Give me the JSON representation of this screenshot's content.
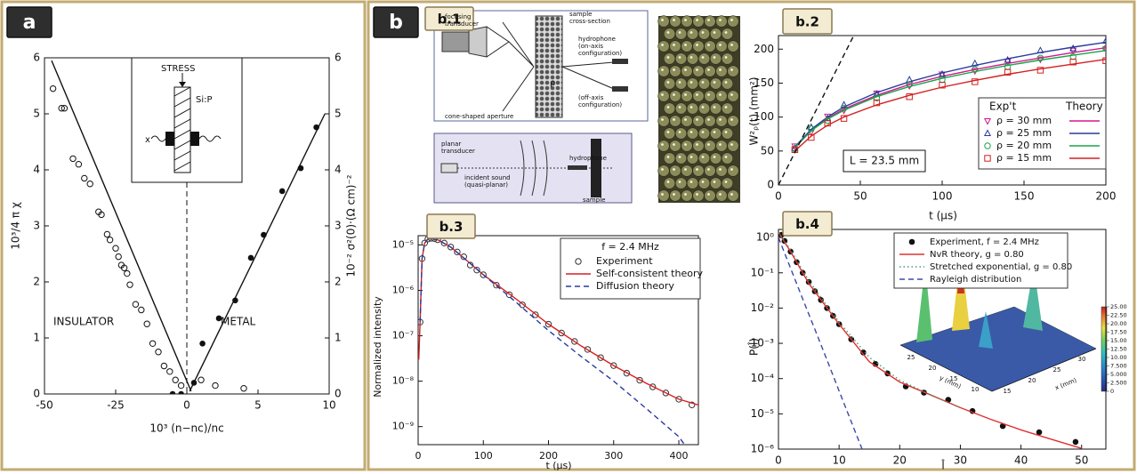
{
  "panel_labels": [
    "a",
    "b"
  ],
  "diagram": {
    "label": "b.1",
    "top": [
      "focusing",
      "transducer",
      "sample",
      "cross-section",
      "hydrophone",
      "(on-axis",
      "configuration)",
      "ρ",
      "(off-axis",
      "configuration)",
      "cone-shaped aperture"
    ],
    "bottom": [
      "planar",
      "transducer",
      "incident sound",
      "(quasi-planar)",
      "hydrophone",
      "sample"
    ]
  },
  "chart_data": [
    {
      "type": "scatter",
      "label": "a",
      "xlabel": "10³ (n−nc)/nc",
      "ylabel": "10³/4 π χ",
      "y2label": "10⁻² σ²(0)·(Ω cm)⁻²",
      "xlim": [
        -50,
        10
      ],
      "xscale_segments": [
        [
          -50,
          0
        ],
        [
          0,
          10
        ]
      ],
      "xticks": [
        -50,
        -25,
        0,
        5,
        10
      ],
      "ylim": [
        0,
        6
      ],
      "yticks": [
        0,
        1,
        2,
        3,
        4,
        5,
        6
      ],
      "y2lim": [
        0,
        6
      ],
      "y2ticks": [
        0,
        1,
        2,
        3,
        4,
        5,
        6
      ],
      "annotations": [
        "INSULATOR",
        "METAL",
        "STRESS",
        "Si:P",
        "x"
      ],
      "series": [
        {
          "marker": "open-circle",
          "color": "#111",
          "x": [
            -47,
            -44,
            -43,
            -40,
            -38,
            -36,
            -34,
            -31,
            -30,
            -28,
            -27,
            -25,
            -24,
            -23,
            -22,
            -21,
            -20,
            -18,
            -16,
            -14,
            -12,
            -10,
            -8,
            -6,
            -4,
            -2,
            1,
            2,
            4
          ],
          "values": [
            5.45,
            5.1,
            5.1,
            4.2,
            4.1,
            3.85,
            3.75,
            3.25,
            3.2,
            2.85,
            2.75,
            2.6,
            2.45,
            2.3,
            2.25,
            2.15,
            1.95,
            1.6,
            1.5,
            1.25,
            0.9,
            0.75,
            0.5,
            0.4,
            0.25,
            0.15,
            0.25,
            0.15,
            0.1
          ]
        },
        {
          "marker": "filled-circle",
          "color": "#111",
          "axis": "y2",
          "x": [
            -5,
            -2,
            0.5,
            1.1,
            2.25,
            3.4,
            4.5,
            5.4,
            6.7,
            8,
            9.1
          ],
          "values": [
            0,
            0,
            0.2,
            0.9,
            1.35,
            1.67,
            2.43,
            2.84,
            3.62,
            4.03,
            4.76
          ]
        },
        {
          "line": "solid",
          "color": "#111",
          "x": [
            -47.5,
            0.3
          ],
          "values": [
            5.95,
            0.05
          ]
        },
        {
          "line": "solid",
          "color": "#111",
          "axis": "y2",
          "x": [
            0.2,
            9.7
          ],
          "values": [
            0.05,
            5.0
          ]
        }
      ]
    },
    {
      "type": "line",
      "label": "b.2",
      "xlabel": "t (µs)",
      "ylabel": "W²ᵨ(t) (mm²)",
      "xlim": [
        0,
        200
      ],
      "xticks": [
        0,
        50,
        100,
        150,
        200
      ],
      "ylim": [
        0,
        220
      ],
      "yticks": [
        0,
        50,
        100,
        150,
        200
      ],
      "legend_header": [
        "Exp't",
        "Theory"
      ],
      "annotations": [
        "L = 23.5 mm"
      ],
      "x": [
        10,
        20,
        30,
        40,
        60,
        80,
        100,
        120,
        140,
        160,
        180,
        200
      ],
      "series": [
        {
          "name": "ρ = 30 mm",
          "color": "#d6188a",
          "line": "solid",
          "marker": "triangle-down",
          "values": [
            55,
            80,
            98,
            112,
            132,
            148,
            160,
            170,
            179,
            187,
            195,
            202
          ],
          "points": [
            57,
            78,
            101,
            110,
            135,
            146,
            163,
            168,
            182,
            185,
            198,
            200
          ]
        },
        {
          "name": "ρ = 25 mm",
          "color": "#2b3a9e",
          "line": "solid",
          "marker": "triangle-up",
          "values": [
            56,
            82,
            100,
            115,
            136,
            152,
            165,
            176,
            186,
            195,
            203,
            210
          ],
          "points": [
            54,
            85,
            98,
            118,
            134,
            155,
            163,
            179,
            184,
            198,
            201,
            212
          ]
        },
        {
          "name": "ρ = 20 mm",
          "color": "#1aa34a",
          "line": "solid",
          "marker": "circle",
          "values": [
            55,
            80,
            97,
            110,
            130,
            145,
            157,
            167,
            176,
            184,
            191,
            198
          ],
          "points": [
            53,
            83,
            95,
            113,
            128,
            148,
            155,
            170,
            174,
            187,
            189,
            201
          ]
        },
        {
          "name": "ρ = 15 mm",
          "color": "#d42020",
          "line": "solid",
          "marker": "square",
          "values": [
            50,
            72,
            88,
            100,
            118,
            132,
            144,
            154,
            163,
            171,
            178,
            185
          ],
          "points": [
            52,
            70,
            91,
            98,
            121,
            130,
            147,
            152,
            166,
            169,
            181,
            183
          ]
        },
        {
          "color": "#111",
          "line": "dashed",
          "x": [
            0,
            46
          ],
          "values": [
            0,
            220
          ]
        }
      ]
    },
    {
      "type": "line",
      "label": "b.3",
      "xlabel": "t (µs)",
      "ylabel": "Normalized intensity",
      "xlim": [
        0,
        430
      ],
      "xticks": [
        0,
        100,
        200,
        300,
        400
      ],
      "log_y": true,
      "ylim": [
        4e-10,
        1.6e-05
      ],
      "yticks": [
        {
          "value": 1e-09,
          "label": "10⁻⁹"
        },
        {
          "value": 1e-08,
          "label": "10⁻⁸"
        },
        {
          "value": 1e-07,
          "label": "10⁻⁷"
        },
        {
          "value": 1e-06,
          "label": "10⁻⁶"
        },
        {
          "value": 1e-05,
          "label": "10⁻⁵"
        }
      ],
      "legend_title": "f = 2.4 MHz",
      "series": [
        {
          "name": "Experiment",
          "color": "#333",
          "marker": "open-circle",
          "x": [
            3,
            6,
            10,
            15,
            20,
            25,
            30,
            40,
            50,
            60,
            70,
            80,
            90,
            100,
            120,
            140,
            160,
            180,
            200,
            220,
            240,
            260,
            280,
            300,
            320,
            340,
            360,
            380,
            400,
            420
          ],
          "values": [
            2e-07,
            5e-06,
            1.1e-05,
            1.35e-05,
            1.4e-05,
            1.38e-05,
            1.3e-05,
            1.1e-05,
            9e-06,
            7e-06,
            5.5e-06,
            3.6e-06,
            2.8e-06,
            2.2e-06,
            1.3e-06,
            8e-07,
            4.8e-07,
            2.9e-07,
            1.8e-07,
            1.15e-07,
            7.5e-08,
            5e-08,
            3.3e-08,
            2.2e-08,
            1.5e-08,
            1.05e-08,
            7.5e-09,
            5.5e-09,
            4e-09,
            3e-09
          ]
        },
        {
          "name": "Self-consistent theory",
          "color": "#d62020",
          "line": "solid",
          "x": [
            1,
            3,
            6,
            10,
            15,
            20,
            30,
            50,
            75,
            100,
            150,
            200,
            250,
            300,
            350,
            400,
            430
          ],
          "values": [
            3e-08,
            2e-07,
            5e-06,
            1.1e-05,
            1.35e-05,
            1.4e-05,
            1.3e-05,
            9e-06,
            4.5e-06,
            2.2e-06,
            6.5e-07,
            1.8e-07,
            6e-08,
            2.2e-08,
            9e-09,
            4e-09,
            3e-09
          ]
        },
        {
          "name": "Diffusion theory",
          "color": "#2a3aa0",
          "line": "dashed",
          "x": [
            3,
            6,
            10,
            15,
            20,
            30,
            50,
            75,
            100,
            150,
            200,
            250,
            300,
            350,
            400,
            415
          ],
          "values": [
            2e-07,
            5e-06,
            1.1e-05,
            1.35e-05,
            1.4e-05,
            1.3e-05,
            9e-06,
            4.5e-06,
            2.2e-06,
            5.5e-07,
            1.3e-07,
            3.5e-08,
            1e-08,
            2.5e-09,
            6e-10,
            3e-10
          ]
        }
      ]
    },
    {
      "type": "line",
      "label": "b.4",
      "xlabel": "l̂",
      "ylabel": "P(l̂)",
      "xlim": [
        0,
        54
      ],
      "xticks": [
        0,
        10,
        20,
        30,
        40,
        50
      ],
      "log_y": true,
      "ylim": [
        1e-06,
        1.7
      ],
      "yticks": [
        {
          "value": 1e-06,
          "label": "10⁻⁶"
        },
        {
          "value": 1e-05,
          "label": "10⁻⁵"
        },
        {
          "value": 0.0001,
          "label": "10⁻⁴"
        },
        {
          "value": 0.001,
          "label": "10⁻³"
        },
        {
          "value": 0.01,
          "label": "10⁻²"
        },
        {
          "value": 0.1,
          "label": "10⁻¹"
        },
        {
          "value": 1,
          "label": "10⁰"
        }
      ],
      "series": [
        {
          "name": "Experiment, f = 2.4 MHz",
          "color": "#111",
          "marker": "filled-circle",
          "x": [
            0.5,
            1,
            2,
            3,
            4,
            5,
            6,
            7,
            8,
            9,
            10,
            12,
            14,
            16,
            18,
            21,
            24,
            28,
            32,
            37,
            43,
            49
          ],
          "values": [
            1.2,
            0.8,
            0.4,
            0.2,
            0.1,
            0.055,
            0.03,
            0.017,
            0.01,
            0.006,
            0.0035,
            0.0013,
            0.00055,
            0.00026,
            0.00014,
            6e-05,
            4e-05,
            2.5e-05,
            1.2e-05,
            4.5e-06,
            3e-06,
            1.6e-06
          ]
        },
        {
          "name": "NvR theory, g = 0.80",
          "color": "#e03030",
          "line": "solid",
          "x": [
            0,
            2,
            5,
            10,
            15,
            20,
            25,
            30,
            35,
            40,
            45,
            50
          ],
          "values": [
            1.4,
            0.4,
            0.05,
            0.0035,
            0.0003,
            8e-05,
            3.5e-05,
            1.5e-05,
            7e-06,
            3.5e-06,
            1.9e-06,
            1.05e-06
          ]
        },
        {
          "name": "Stretched exponential, g = 0.80",
          "color": "#4a9a6a",
          "line": "dotted",
          "x": [
            0,
            2,
            5,
            10,
            15,
            20,
            25,
            30
          ],
          "values": [
            1.4,
            0.45,
            0.06,
            0.004,
            0.0004,
            9e-05,
            3.5e-05,
            1.5e-05
          ]
        },
        {
          "name": "Rayleigh distribution",
          "color": "#3a4aa8",
          "line": "dashed",
          "x": [
            0,
            2,
            4,
            6,
            8,
            10,
            12,
            13.8
          ],
          "values": [
            1,
            0.135,
            0.018,
            0.0025,
            0.00034,
            4.5e-05,
            6e-06,
            1e-06
          ]
        }
      ],
      "inset": {
        "y_axis_label": "y (mm)",
        "x_axis_label": "x (mm)",
        "y_ticks": [
          25,
          20,
          15,
          10
        ],
        "x_ticks": [
          15,
          20,
          25,
          30
        ],
        "colorbar": {
          "lim": [
            0,
            25
          ],
          "ticks": [
            {
              "value": 25,
              "label": "25.00"
            },
            {
              "value": 22.5,
              "label": "22.50"
            },
            {
              "value": 20,
              "label": "20.00"
            },
            {
              "value": 17.5,
              "label": "17.50"
            },
            {
              "value": 15,
              "label": "15.00"
            },
            {
              "value": 12.5,
              "label": "12.50"
            },
            {
              "value": 10,
              "label": "10.00"
            },
            {
              "value": 7.5,
              "label": "7.500"
            },
            {
              "value": 5,
              "label": "5.000"
            },
            {
              "value": 2.5,
              "label": "2.500"
            },
            0
          ]
        }
      }
    }
  ]
}
